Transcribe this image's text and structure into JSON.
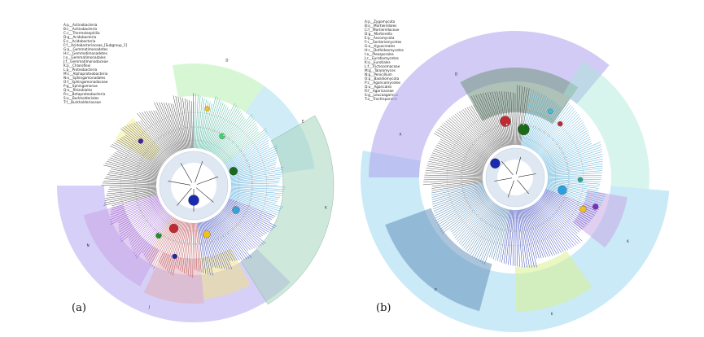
{
  "panels": [
    {
      "label": "(a)",
      "legend": [
        "A:p__Actinobacteria",
        "B:c__Actinobacteria",
        "C:c__Thermoleophilia",
        "D:g__Acidobacteria",
        "E:c__Acidobacteria",
        "F:f__Acidobacteriaceae_[Subgroup_1]",
        "G:p__Gemmatimonadetes",
        "H:c__Gemmatimonadetes",
        "I:o__Gemmatimonadales",
        "J:f__Gemmatimonadaceae",
        "K:p__Chloroflexi",
        "L:p__Proteobacteria",
        "M:c__Alphaproteobacteria",
        "N:o__Sphingomonadales",
        "O:f__Sphingomonadaceae",
        "P:g__Sphingomonas",
        "Q:o__Rhizobiales",
        "R:c__Betaproteobacteria",
        "S:o__Burkholderiales",
        "T:f__Burkholderiaceae"
      ]
    },
    {
      "label": "(b)",
      "legend": [
        "A:p__Zygomycota",
        "B:o__Mortierellales",
        "C:f__Mortierellaceae",
        "D:g__Mortierella",
        "E:p__Ascomycota",
        "F:c__Sordariomycetes",
        "G:o__Hypocreales",
        "H:c__Dothideomycetes",
        "I:o__Pleosporales",
        "J:c__Eurotiomycetes",
        "K:o__Eurotiales",
        "L:f__Trichocomaceae",
        "M:g__Talaromyces",
        "N:g__Penicillium",
        "O:p__Basidiomycota",
        "P:c__Agaricomycetes",
        "Q:o__Agaricales",
        "R:f__Agaricaceae",
        "S:g__Leucoagaricus",
        "T:o__Trechisporales"
      ]
    }
  ]
}
